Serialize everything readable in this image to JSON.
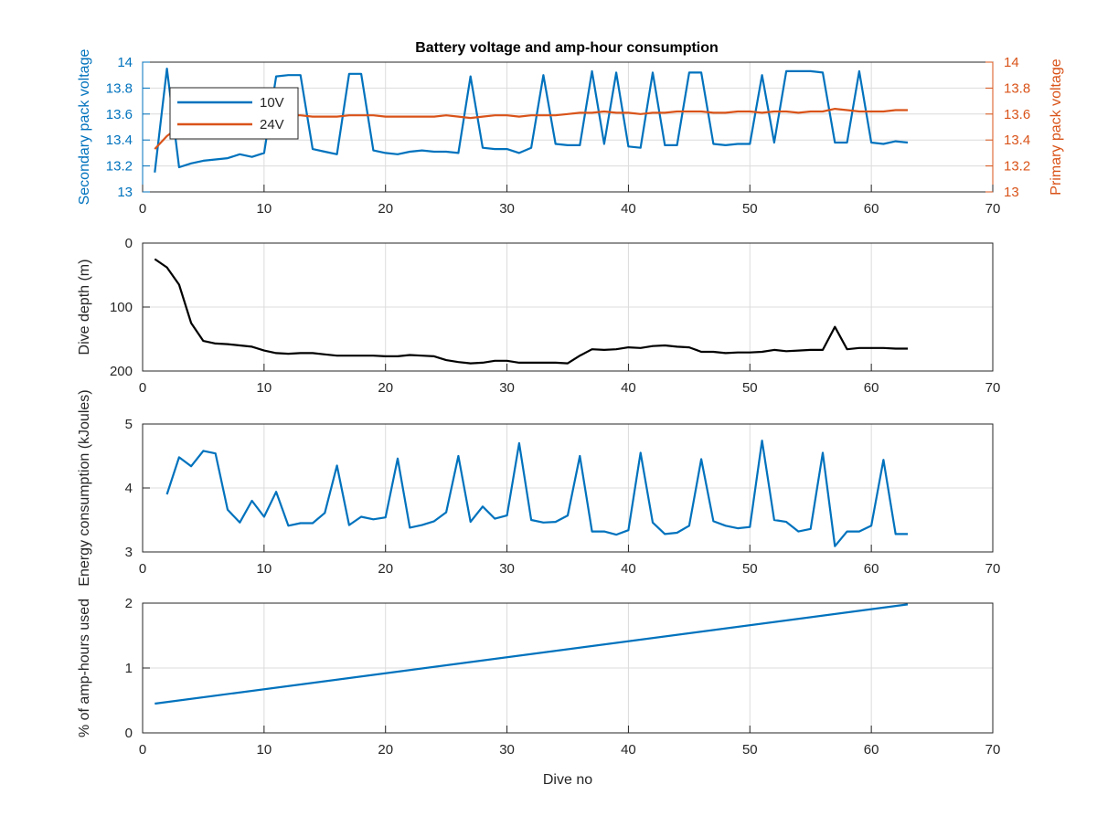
{
  "figure_title": "Battery voltage and amp-hour consumption",
  "chart_data": [
    {
      "type": "line",
      "title": "Battery voltage and amp-hour consumption",
      "xlabel": "",
      "ylabel_left": "Secondary pack voltage",
      "ylabel_right": "Primary pack voltage",
      "xlim": [
        0,
        70
      ],
      "ylim_left": [
        13,
        14
      ],
      "ylim_right": [
        13,
        14
      ],
      "xticks": [
        0,
        10,
        20,
        30,
        40,
        50,
        60,
        70
      ],
      "yticks_left": [
        13,
        13.2,
        13.4,
        13.6,
        13.8,
        14
      ],
      "yticks_right": [
        13,
        13.2,
        13.4,
        13.6,
        13.8,
        14
      ],
      "grid": true,
      "legend_position": "top-left",
      "x": [
        1,
        2,
        3,
        4,
        5,
        6,
        7,
        8,
        9,
        10,
        11,
        12,
        13,
        14,
        15,
        16,
        17,
        18,
        19,
        20,
        21,
        22,
        23,
        24,
        25,
        26,
        27,
        28,
        29,
        30,
        31,
        32,
        33,
        34,
        35,
        36,
        37,
        38,
        39,
        40,
        41,
        42,
        43,
        44,
        45,
        46,
        47,
        48,
        49,
        50,
        51,
        52,
        53,
        54,
        55,
        56,
        57,
        58,
        59,
        60,
        61,
        62,
        63
      ],
      "series": [
        {
          "name": "10V",
          "axis": "left",
          "color": "#0072BD",
          "values": [
            13.15,
            13.95,
            13.19,
            13.22,
            13.24,
            13.25,
            13.26,
            13.29,
            13.27,
            13.3,
            13.89,
            13.9,
            13.9,
            13.33,
            13.31,
            13.29,
            13.91,
            13.91,
            13.32,
            13.3,
            13.29,
            13.31,
            13.32,
            13.31,
            13.31,
            13.3,
            13.89,
            13.34,
            13.33,
            13.33,
            13.3,
            13.34,
            13.9,
            13.37,
            13.36,
            13.36,
            13.93,
            13.37,
            13.92,
            13.35,
            13.34,
            13.92,
            13.36,
            13.36,
            13.92,
            13.92,
            13.37,
            13.36,
            13.37,
            13.37,
            13.9,
            13.38,
            13.93,
            13.93,
            13.93,
            13.92,
            13.38,
            13.38,
            13.93,
            13.38,
            13.37,
            13.39,
            13.38
          ]
        },
        {
          "name": "24V",
          "axis": "right",
          "color": "#D95319",
          "values": [
            13.33,
            13.43,
            13.5,
            13.54,
            13.55,
            13.57,
            13.58,
            13.58,
            13.59,
            13.59,
            13.59,
            13.59,
            13.59,
            13.58,
            13.58,
            13.58,
            13.59,
            13.59,
            13.59,
            13.58,
            13.58,
            13.58,
            13.58,
            13.58,
            13.59,
            13.58,
            13.57,
            13.58,
            13.59,
            13.59,
            13.58,
            13.59,
            13.59,
            13.59,
            13.6,
            13.61,
            13.61,
            13.62,
            13.61,
            13.61,
            13.6,
            13.61,
            13.61,
            13.62,
            13.62,
            13.62,
            13.61,
            13.61,
            13.62,
            13.62,
            13.61,
            13.62,
            13.62,
            13.61,
            13.62,
            13.62,
            13.64,
            13.63,
            13.62,
            13.62,
            13.62,
            13.63,
            13.63
          ]
        }
      ]
    },
    {
      "type": "line",
      "xlabel": "",
      "ylabel": "Dive depth (m)",
      "xlim": [
        0,
        70
      ],
      "ylim": [
        0,
        200
      ],
      "y_reversed": true,
      "xticks": [
        0,
        10,
        20,
        30,
        40,
        50,
        60,
        70
      ],
      "yticks": [
        0,
        100,
        200
      ],
      "grid": true,
      "x": [
        1,
        2,
        3,
        4,
        5,
        6,
        7,
        8,
        9,
        10,
        11,
        12,
        13,
        14,
        15,
        16,
        17,
        18,
        19,
        20,
        21,
        22,
        23,
        24,
        25,
        26,
        27,
        28,
        29,
        30,
        31,
        32,
        33,
        34,
        35,
        36,
        37,
        38,
        39,
        40,
        41,
        42,
        43,
        44,
        45,
        46,
        47,
        48,
        49,
        50,
        51,
        52,
        53,
        54,
        55,
        56,
        57,
        58,
        59,
        60,
        61,
        62,
        63
      ],
      "series": [
        {
          "color": "#000000",
          "values": [
            25,
            38,
            65,
            125,
            153,
            157,
            158,
            160,
            162,
            168,
            172,
            173,
            172,
            172,
            174,
            176,
            176,
            176,
            176,
            177,
            177,
            175,
            176,
            177,
            183,
            186,
            188,
            187,
            184,
            184,
            187,
            187,
            187,
            187,
            188,
            176,
            166,
            167,
            166,
            163,
            164,
            161,
            160,
            162,
            163,
            170,
            170,
            172,
            171,
            171,
            170,
            167,
            169,
            168,
            167,
            167,
            131,
            166,
            164,
            164,
            164,
            165,
            165
          ]
        }
      ]
    },
    {
      "type": "line",
      "xlabel": "",
      "ylabel": "Energy consumption (kJoules)",
      "xlim": [
        0,
        70
      ],
      "ylim": [
        3,
        5
      ],
      "xticks": [
        0,
        10,
        20,
        30,
        40,
        50,
        60,
        70
      ],
      "yticks": [
        3,
        4,
        5
      ],
      "grid": true,
      "x": [
        2,
        3,
        4,
        5,
        6,
        7,
        8,
        9,
        10,
        11,
        12,
        13,
        14,
        15,
        16,
        17,
        18,
        19,
        20,
        21,
        22,
        23,
        24,
        25,
        26,
        27,
        28,
        29,
        30,
        31,
        32,
        33,
        34,
        35,
        36,
        37,
        38,
        39,
        40,
        41,
        42,
        43,
        44,
        45,
        46,
        47,
        48,
        49,
        50,
        51,
        52,
        53,
        54,
        55,
        56,
        57,
        58,
        59,
        60,
        61,
        62,
        63
      ],
      "series": [
        {
          "color": "#0072BD",
          "values": [
            3.9,
            4.48,
            4.34,
            4.58,
            4.54,
            3.66,
            3.46,
            3.8,
            3.55,
            3.94,
            3.41,
            3.45,
            3.45,
            3.61,
            4.35,
            3.42,
            3.55,
            3.51,
            3.54,
            4.46,
            3.38,
            3.42,
            3.48,
            3.62,
            4.5,
            3.47,
            3.71,
            3.52,
            3.57,
            4.7,
            3.5,
            3.46,
            3.47,
            3.57,
            4.5,
            3.32,
            3.32,
            3.27,
            3.34,
            4.55,
            3.46,
            3.28,
            3.3,
            3.41,
            4.45,
            3.48,
            3.41,
            3.37,
            3.39,
            4.74,
            3.5,
            3.47,
            3.32,
            3.36,
            4.55,
            3.09,
            3.32,
            3.32,
            3.41,
            4.44,
            3.28,
            3.28
          ]
        }
      ]
    },
    {
      "type": "line",
      "xlabel": "Dive no",
      "ylabel": "% of amp-hours used",
      "xlim": [
        0,
        70
      ],
      "ylim": [
        0,
        2
      ],
      "xticks": [
        0,
        10,
        20,
        30,
        40,
        50,
        60,
        70
      ],
      "yticks": [
        0,
        1,
        2
      ],
      "grid": true,
      "x": [
        1,
        63
      ],
      "series": [
        {
          "color": "#0072BD",
          "values": [
            0.45,
            1.98
          ]
        }
      ]
    }
  ]
}
